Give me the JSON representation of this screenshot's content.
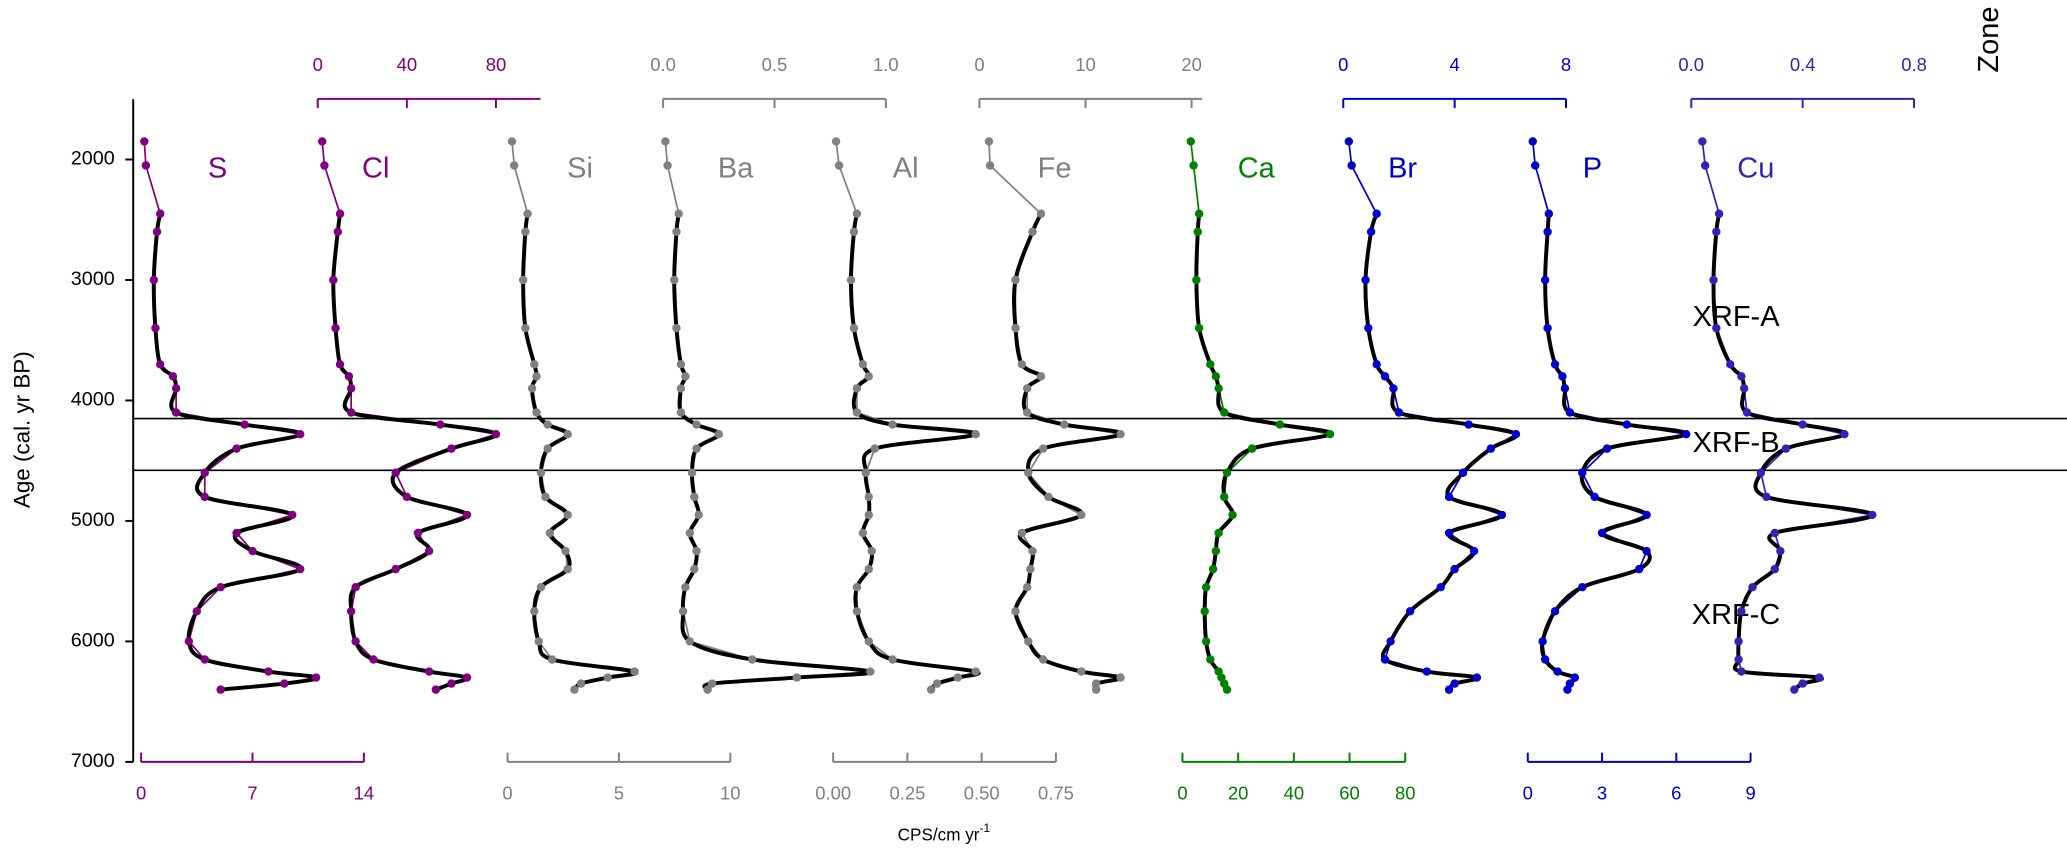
{
  "chart_data": {
    "type": "stratigraphic",
    "y_label": "Age (cal. yr BP)",
    "ylim": [
      1500,
      7000
    ],
    "yticks": [
      2000,
      3000,
      4000,
      5000,
      6000,
      7000
    ],
    "y_inverted": true,
    "x_label": "CPS/cm yr",
    "x_label_sup": "-1",
    "trend_color": "#000000",
    "ages": [
      1850,
      2050,
      2450,
      2600,
      3000,
      3400,
      3700,
      3800,
      3900,
      4100,
      4200,
      4280,
      4400,
      4600,
      4800,
      4950,
      5100,
      5250,
      5400,
      5550,
      5750,
      6000,
      6150,
      6250,
      6300,
      6350,
      6400
    ],
    "zones": {
      "title": "Zone",
      "boundaries": [
        4150,
        4580
      ],
      "labels": [
        "XRF-A",
        "XRF-B",
        "XRF-C"
      ]
    },
    "panels": [
      {
        "name": "S",
        "color": "#800080",
        "axis_side": "bottom",
        "xlim": [
          0,
          14
        ],
        "xticks": [
          0,
          7,
          14
        ],
        "values": [
          0.2,
          0.3,
          1.2,
          1,
          0.8,
          0.9,
          1.2,
          2,
          2.2,
          2.2,
          6.5,
          10,
          6,
          4,
          4,
          9.5,
          6,
          7,
          10,
          5,
          3.5,
          3,
          4,
          8,
          11,
          9,
          5
        ]
      },
      {
        "name": "Cl",
        "color": "#800080",
        "axis_side": "top",
        "xlim": [
          0,
          100
        ],
        "xticks": [
          0,
          40,
          80
        ],
        "values": [
          2,
          3,
          10,
          9,
          7,
          8,
          10,
          14,
          15,
          15,
          55,
          80,
          60,
          35,
          40,
          67,
          45,
          50,
          35,
          17,
          15,
          17,
          25,
          50,
          67,
          60,
          53
        ]
      },
      {
        "name": "Si",
        "color": "#808080",
        "axis_side": "bottom",
        "xlim": [
          0,
          10
        ],
        "xticks": [
          0,
          5,
          10
        ],
        "values": [
          0.2,
          0.3,
          0.9,
          0.8,
          0.7,
          0.8,
          1.2,
          1.3,
          1.1,
          1.3,
          1.8,
          2.7,
          1.8,
          1.5,
          1.7,
          2.7,
          1.9,
          2.6,
          2.7,
          1.5,
          1.2,
          1.4,
          2,
          5.7,
          4.5,
          3.3,
          3
        ]
      },
      {
        "name": "Ba",
        "color": "#808080",
        "axis_side": "top",
        "xlim": [
          0,
          1
        ],
        "xticks": [
          {
            "value": 0,
            "label": "0.0"
          },
          {
            "value": 0.5,
            "label": "0.5"
          },
          {
            "value": 1,
            "label": "1.0"
          }
        ],
        "values": [
          0.01,
          0.02,
          0.07,
          0.06,
          0.05,
          0.06,
          0.08,
          0.1,
          0.08,
          0.08,
          0.15,
          0.25,
          0.15,
          0.13,
          0.14,
          0.16,
          0.12,
          0.15,
          0.14,
          0.1,
          0.09,
          0.12,
          0.4,
          0.93,
          0.6,
          0.22,
          0.2
        ]
      },
      {
        "name": "Al",
        "color": "#808080",
        "axis_side": "bottom",
        "xlim": [
          0,
          0.75
        ],
        "xticks": [
          {
            "value": 0,
            "label": "0.00"
          },
          {
            "value": 0.25,
            "label": "0.25"
          },
          {
            "value": 0.5,
            "label": "0.50"
          },
          {
            "value": 0.75,
            "label": "0.75"
          }
        ],
        "values": [
          0.01,
          0.02,
          0.08,
          0.07,
          0.06,
          0.07,
          0.1,
          0.12,
          0.08,
          0.08,
          0.2,
          0.48,
          0.14,
          0.11,
          0.12,
          0.12,
          0.1,
          0.13,
          0.12,
          0.08,
          0.08,
          0.12,
          0.2,
          0.48,
          0.42,
          0.35,
          0.33
        ]
      },
      {
        "name": "Fe",
        "color": "#808080",
        "axis_side": "top",
        "xlim": [
          0,
          21
        ],
        "xticks": [
          0,
          10,
          20
        ],
        "values": [
          0.9,
          1,
          5.8,
          5,
          3.4,
          3.4,
          4,
          5.8,
          4.5,
          4.5,
          8,
          13.3,
          6,
          4.6,
          6.5,
          9.6,
          4,
          5,
          4.8,
          4.5,
          3.4,
          4.6,
          6,
          9.6,
          13.3,
          11,
          11
        ]
      },
      {
        "name": "Ca",
        "color": "#008000",
        "axis_side": "bottom",
        "xlim": [
          0,
          80
        ],
        "xticks": [
          0,
          20,
          40,
          60,
          80
        ],
        "values": [
          3,
          4,
          6,
          5.5,
          5,
          6,
          10,
          12,
          13,
          15,
          35,
          53,
          25,
          16,
          15,
          18,
          13,
          12,
          11,
          8.5,
          8,
          8.5,
          10,
          13,
          14,
          15,
          16
        ]
      },
      {
        "name": "Br",
        "color": "#0000cc",
        "axis_side": "top",
        "xlim": [
          0,
          8
        ],
        "xticks": [
          0,
          4,
          8
        ],
        "values": [
          0.2,
          0.3,
          1.2,
          1,
          0.8,
          0.9,
          1.2,
          1.5,
          1.8,
          2,
          4.5,
          6.2,
          5.3,
          4.3,
          3.8,
          5.7,
          3.8,
          4.7,
          4,
          3.5,
          2.4,
          1.7,
          1.5,
          3,
          4.8,
          4,
          3.8
        ]
      },
      {
        "name": "P",
        "color": "#0000cc",
        "axis_side": "bottom",
        "xlim": [
          0,
          9
        ],
        "xticks": [
          0,
          3,
          6,
          9
        ],
        "values": [
          0.2,
          0.3,
          0.85,
          0.8,
          0.7,
          0.8,
          1.1,
          1.4,
          1.5,
          1.7,
          4,
          6.4,
          3.2,
          2.2,
          2.7,
          4.8,
          3,
          4.8,
          4.5,
          2.2,
          1.1,
          0.6,
          0.7,
          1.2,
          1.9,
          1.7,
          1.6
        ]
      },
      {
        "name": "Cu",
        "color": "#3a1fb5",
        "axis_side": "top",
        "xlim": [
          0,
          0.8
        ],
        "xticks": [
          {
            "value": 0,
            "label": "0.0"
          },
          {
            "value": 0.4,
            "label": "0.4"
          },
          {
            "value": 0.8,
            "label": "0.8"
          }
        ],
        "values": [
          0.04,
          0.05,
          0.1,
          0.09,
          0.08,
          0.09,
          0.14,
          0.18,
          0.19,
          0.2,
          0.4,
          0.55,
          0.34,
          0.25,
          0.27,
          0.65,
          0.3,
          0.32,
          0.3,
          0.22,
          0.18,
          0.17,
          0.17,
          0.18,
          0.46,
          0.4,
          0.37
        ]
      }
    ]
  }
}
